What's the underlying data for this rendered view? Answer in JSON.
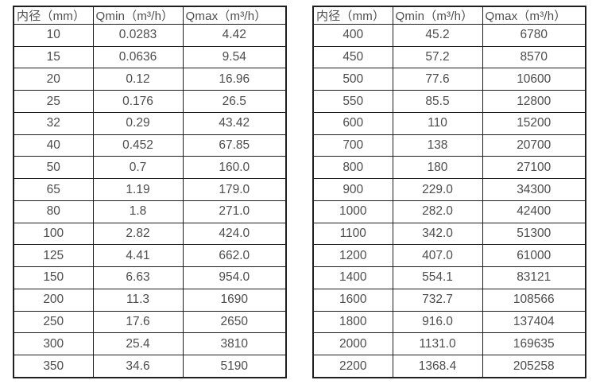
{
  "colors": {
    "border": "#1f1f1f",
    "text": "#4d4d4d",
    "background": "#ffffff"
  },
  "chart_data": [
    {
      "type": "table",
      "name": "flow-spec-table-small-diameters",
      "columns": [
        "内径（mm）",
        "Qmin（m³/h）",
        "Qmax（m³/h）"
      ],
      "rows": [
        [
          "10",
          "0.0283",
          "4.42"
        ],
        [
          "15",
          "0.0636",
          "9.54"
        ],
        [
          "20",
          "0.12",
          "16.96"
        ],
        [
          "25",
          "0.176",
          "26.5"
        ],
        [
          "32",
          "0.29",
          "43.42"
        ],
        [
          "40",
          "0.452",
          "67.85"
        ],
        [
          "50",
          "0.7",
          "160.0"
        ],
        [
          "65",
          "1.19",
          "179.0"
        ],
        [
          "80",
          "1.8",
          "271.0"
        ],
        [
          "100",
          "2.82",
          "424.0"
        ],
        [
          "125",
          "4.41",
          "662.0"
        ],
        [
          "150",
          "6.63",
          "954.0"
        ],
        [
          "200",
          "11.3",
          "1690"
        ],
        [
          "250",
          "17.6",
          "2650"
        ],
        [
          "300",
          "25.4",
          "3810"
        ],
        [
          "350",
          "34.6",
          "5190"
        ]
      ],
      "layout": {
        "grid": true,
        "header_align": "left",
        "cell_align": "center"
      }
    },
    {
      "type": "table",
      "name": "flow-spec-table-large-diameters",
      "columns": [
        "内径（mm）",
        "Qmin（m³/h）",
        "Qmax（m³/h）"
      ],
      "rows": [
        [
          "400",
          "45.2",
          "6780"
        ],
        [
          "450",
          "57.2",
          "8570"
        ],
        [
          "500",
          "77.6",
          "10600"
        ],
        [
          "550",
          "85.5",
          "12800"
        ],
        [
          "600",
          "110",
          "15200"
        ],
        [
          "700",
          "138",
          "20700"
        ],
        [
          "800",
          "180",
          "27100"
        ],
        [
          "900",
          "229.0",
          "34300"
        ],
        [
          "1000",
          "282.0",
          "42400"
        ],
        [
          "1100",
          "342.0",
          "51300"
        ],
        [
          "1200",
          "407.0",
          "61000"
        ],
        [
          "1400",
          "554.1",
          "83121"
        ],
        [
          "1600",
          "732.7",
          "108566"
        ],
        [
          "1800",
          "916.0",
          "137404"
        ],
        [
          "2000",
          "1131.0",
          "169635"
        ],
        [
          "2200",
          "1368.4",
          "205258"
        ]
      ],
      "layout": {
        "grid": true,
        "header_align": "left",
        "cell_align": "center"
      }
    }
  ]
}
